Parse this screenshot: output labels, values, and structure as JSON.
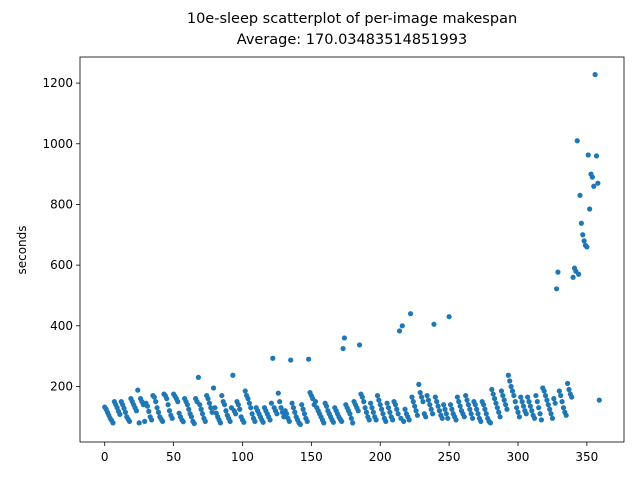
{
  "chart_data": {
    "type": "scatter",
    "title": "10e-sleep scatterplot of per-image makespan",
    "subtitle": "Average: 170.03483514851993",
    "y_label": "seconds",
    "color": "#1f77b4",
    "xlim": [
      -17.95,
      376.95
    ],
    "xticks": [
      0,
      50,
      100,
      150,
      200,
      250,
      300,
      350
    ],
    "ylim": [
      17,
      1286
    ],
    "yticks": [
      200,
      400,
      600,
      800,
      1000,
      1200
    ],
    "x": [
      0,
      1,
      2,
      3,
      4,
      5,
      6,
      7,
      8,
      9,
      10,
      11,
      12,
      13,
      14,
      15,
      16,
      17,
      18,
      19,
      20,
      21,
      22,
      23,
      24,
      25,
      26,
      27,
      28,
      29,
      30,
      31,
      32,
      33,
      34,
      35,
      36,
      37,
      38,
      39,
      40,
      41,
      42,
      43,
      44,
      45,
      46,
      47,
      48,
      49,
      50,
      51,
      52,
      53,
      54,
      55,
      56,
      57,
      58,
      59,
      60,
      61,
      62,
      63,
      64,
      65,
      66,
      67,
      68,
      69,
      70,
      71,
      72,
      73,
      74,
      75,
      76,
      77,
      78,
      79,
      80,
      81,
      82,
      83,
      84,
      85,
      86,
      87,
      88,
      89,
      90,
      91,
      92,
      93,
      94,
      95,
      96,
      97,
      98,
      99,
      100,
      101,
      102,
      103,
      104,
      105,
      106,
      107,
      108,
      109,
      110,
      111,
      112,
      113,
      114,
      115,
      116,
      117,
      118,
      119,
      120,
      121,
      122,
      123,
      124,
      125,
      126,
      127,
      128,
      129,
      130,
      131,
      132,
      133,
      134,
      135,
      136,
      137,
      138,
      139,
      140,
      141,
      142,
      143,
      144,
      145,
      146,
      147,
      148,
      149,
      150,
      151,
      152,
      153,
      154,
      155,
      156,
      157,
      158,
      159,
      160,
      161,
      162,
      163,
      164,
      165,
      166,
      167,
      168,
      169,
      170,
      171,
      172,
      173,
      174,
      175,
      176,
      177,
      178,
      179,
      180,
      181,
      182,
      183,
      184,
      185,
      186,
      187,
      188,
      189,
      190,
      191,
      192,
      193,
      194,
      195,
      196,
      197,
      198,
      199,
      200,
      201,
      202,
      203,
      204,
      205,
      206,
      207,
      208,
      209,
      210,
      211,
      212,
      213,
      214,
      215,
      216,
      217,
      218,
      219,
      220,
      221,
      222,
      223,
      224,
      225,
      226,
      227,
      228,
      229,
      230,
      231,
      232,
      233,
      234,
      235,
      236,
      237,
      238,
      239,
      240,
      241,
      242,
      243,
      244,
      245,
      246,
      247,
      248,
      249,
      250,
      251,
      252,
      253,
      254,
      255,
      256,
      257,
      258,
      259,
      260,
      261,
      262,
      263,
      264,
      265,
      266,
      267,
      268,
      269,
      270,
      271,
      272,
      273,
      274,
      275,
      276,
      277,
      278,
      279,
      280,
      281,
      282,
      283,
      284,
      285,
      286,
      287,
      288,
      289,
      290,
      291,
      292,
      293,
      294,
      295,
      296,
      297,
      298,
      299,
      300,
      301,
      302,
      303,
      304,
      305,
      306,
      307,
      308,
      309,
      310,
      311,
      312,
      313,
      314,
      315,
      316,
      317,
      318,
      319,
      320,
      321,
      322,
      323,
      324,
      325,
      326,
      327,
      328,
      329,
      330,
      331,
      332,
      333,
      334,
      335,
      336,
      337,
      338,
      339,
      340,
      341,
      342,
      343,
      344,
      345,
      346,
      347,
      348,
      349,
      350,
      351,
      352,
      353,
      354,
      355,
      356,
      357,
      358,
      359
    ],
    "values": [
      132,
      125,
      115,
      105,
      95,
      88,
      80,
      150,
      140,
      130,
      118,
      108,
      150,
      140,
      128,
      115,
      100,
      92,
      85,
      160,
      150,
      140,
      130,
      120,
      188,
      80,
      160,
      150,
      140,
      85,
      145,
      135,
      118,
      100,
      90,
      170,
      165,
      150,
      130,
      115,
      100,
      92,
      85,
      175,
      170,
      160,
      140,
      120,
      105,
      95,
      175,
      168,
      160,
      150,
      112,
      100,
      90,
      84,
      160,
      150,
      140,
      125,
      110,
      100,
      85,
      78,
      160,
      150,
      230,
      140,
      125,
      110,
      95,
      85,
      170,
      160,
      145,
      130,
      115,
      195,
      130,
      112,
      100,
      90,
      80,
      170,
      150,
      140,
      120,
      105,
      95,
      85,
      130,
      237,
      120,
      110,
      150,
      140,
      125,
      100,
      90,
      82,
      185,
      170,
      160,
      145,
      130,
      110,
      95,
      85,
      130,
      120,
      110,
      100,
      90,
      82,
      130,
      120,
      110,
      100,
      90,
      145,
      293,
      130,
      120,
      110,
      178,
      150,
      130,
      115,
      100,
      120,
      110,
      95,
      85,
      287,
      145,
      130,
      115,
      100,
      90,
      80,
      75,
      140,
      125,
      110,
      95,
      85,
      290,
      180,
      170,
      160,
      140,
      150,
      130,
      120,
      110,
      100,
      90,
      80,
      145,
      135,
      120,
      110,
      100,
      90,
      82,
      130,
      120,
      110,
      100,
      92,
      85,
      325,
      360,
      140,
      130,
      120,
      110,
      95,
      80,
      150,
      140,
      130,
      120,
      337,
      175,
      165,
      150,
      130,
      115,
      100,
      90,
      145,
      130,
      115,
      100,
      90,
      170,
      155,
      140,
      125,
      110,
      95,
      85,
      145,
      130,
      115,
      100,
      90,
      150,
      140,
      125,
      110,
      383,
      95,
      400,
      85,
      125,
      110,
      100,
      90,
      440,
      165,
      150,
      135,
      120,
      105,
      207,
      180,
      165,
      150,
      110,
      100,
      170,
      155,
      140,
      125,
      110,
      405,
      165,
      150,
      135,
      120,
      105,
      95,
      140,
      125,
      110,
      95,
      430,
      140,
      125,
      110,
      100,
      90,
      165,
      150,
      135,
      120,
      110,
      100,
      170,
      155,
      140,
      125,
      110,
      95,
      150,
      140,
      125,
      110,
      95,
      85,
      150,
      140,
      125,
      110,
      95,
      85,
      80,
      190,
      175,
      160,
      145,
      130,
      115,
      100,
      185,
      170,
      155,
      140,
      125,
      237,
      218,
      200,
      185,
      170,
      150,
      130,
      115,
      100,
      165,
      150,
      135,
      120,
      110,
      165,
      150,
      135,
      120,
      105,
      95,
      170,
      150,
      130,
      110,
      90,
      195,
      185,
      170,
      155,
      140,
      125,
      110,
      95,
      160,
      145,
      522,
      577,
      185,
      170,
      150,
      130,
      115,
      105,
      210,
      190,
      175,
      165,
      560,
      590,
      580,
      1010,
      570,
      830,
      738,
      700,
      680,
      665,
      660,
      963,
      785,
      900,
      890,
      860,
      1228,
      960,
      870,
      155
    ]
  }
}
